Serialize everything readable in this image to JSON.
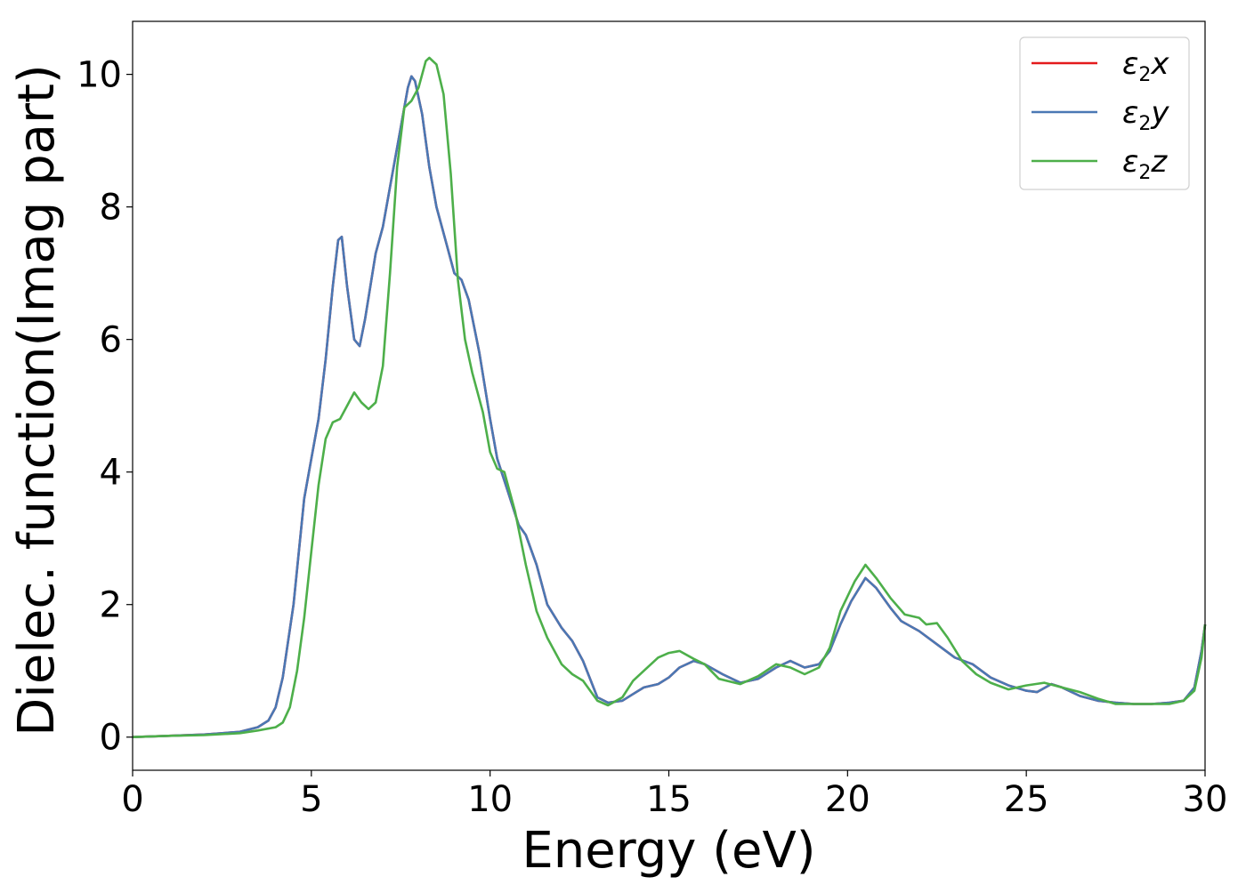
{
  "chart_data": {
    "type": "line",
    "title": "",
    "xlabel": "Energy (eV)",
    "ylabel": "Dielec. function(Imag part)",
    "xlim": [
      0,
      30
    ],
    "ylim": [
      -0.5,
      10.8
    ],
    "xticks": [
      0,
      5,
      10,
      15,
      20,
      25,
      30
    ],
    "yticks": [
      0,
      2,
      4,
      6,
      8,
      10
    ],
    "grid": false,
    "legend_position": "top-right",
    "series": [
      {
        "name": "ε2x",
        "legend_symbol": "ε",
        "legend_sub": "2",
        "legend_var": "x",
        "color": "#e41a1c",
        "points": [
          [
            0,
            0
          ],
          [
            1,
            0.02
          ],
          [
            2,
            0.04
          ],
          [
            3,
            0.08
          ],
          [
            3.5,
            0.15
          ],
          [
            3.8,
            0.25
          ],
          [
            4.0,
            0.45
          ],
          [
            4.2,
            0.9
          ],
          [
            4.5,
            2.0
          ],
          [
            4.8,
            3.6
          ],
          [
            5.0,
            4.2
          ],
          [
            5.2,
            4.8
          ],
          [
            5.4,
            5.7
          ],
          [
            5.6,
            6.8
          ],
          [
            5.75,
            7.5
          ],
          [
            5.85,
            7.55
          ],
          [
            6.0,
            6.8
          ],
          [
            6.2,
            6.0
          ],
          [
            6.35,
            5.9
          ],
          [
            6.5,
            6.3
          ],
          [
            6.8,
            7.3
          ],
          [
            7.0,
            7.7
          ],
          [
            7.2,
            8.3
          ],
          [
            7.5,
            9.2
          ],
          [
            7.7,
            9.8
          ],
          [
            7.8,
            9.97
          ],
          [
            7.9,
            9.9
          ],
          [
            8.1,
            9.4
          ],
          [
            8.3,
            8.6
          ],
          [
            8.5,
            8.0
          ],
          [
            8.8,
            7.4
          ],
          [
            9.0,
            7.0
          ],
          [
            9.2,
            6.9
          ],
          [
            9.4,
            6.6
          ],
          [
            9.7,
            5.8
          ],
          [
            10.0,
            4.8
          ],
          [
            10.2,
            4.2
          ],
          [
            10.5,
            3.7
          ],
          [
            10.8,
            3.2
          ],
          [
            11.0,
            3.05
          ],
          [
            11.3,
            2.6
          ],
          [
            11.6,
            2.0
          ],
          [
            12.0,
            1.65
          ],
          [
            12.3,
            1.45
          ],
          [
            12.6,
            1.15
          ],
          [
            13.0,
            0.6
          ],
          [
            13.3,
            0.52
          ],
          [
            13.7,
            0.55
          ],
          [
            14.0,
            0.65
          ],
          [
            14.3,
            0.75
          ],
          [
            14.7,
            0.8
          ],
          [
            15.0,
            0.9
          ],
          [
            15.3,
            1.05
          ],
          [
            15.7,
            1.15
          ],
          [
            16.0,
            1.1
          ],
          [
            16.5,
            0.95
          ],
          [
            17.0,
            0.82
          ],
          [
            17.5,
            0.88
          ],
          [
            18.0,
            1.05
          ],
          [
            18.4,
            1.15
          ],
          [
            18.8,
            1.05
          ],
          [
            19.2,
            1.1
          ],
          [
            19.5,
            1.3
          ],
          [
            19.8,
            1.7
          ],
          [
            20.1,
            2.05
          ],
          [
            20.5,
            2.4
          ],
          [
            20.8,
            2.25
          ],
          [
            21.2,
            1.95
          ],
          [
            21.5,
            1.75
          ],
          [
            22.0,
            1.6
          ],
          [
            22.5,
            1.4
          ],
          [
            23.0,
            1.2
          ],
          [
            23.5,
            1.1
          ],
          [
            24.0,
            0.9
          ],
          [
            24.5,
            0.78
          ],
          [
            25.0,
            0.7
          ],
          [
            25.3,
            0.68
          ],
          [
            25.7,
            0.8
          ],
          [
            26.0,
            0.75
          ],
          [
            26.5,
            0.62
          ],
          [
            27.0,
            0.55
          ],
          [
            27.5,
            0.52
          ],
          [
            28.0,
            0.5
          ],
          [
            28.5,
            0.5
          ],
          [
            29.0,
            0.52
          ],
          [
            29.4,
            0.55
          ],
          [
            29.7,
            0.75
          ],
          [
            29.9,
            1.3
          ],
          [
            30.0,
            1.7
          ]
        ]
      },
      {
        "name": "ε2y",
        "legend_symbol": "ε",
        "legend_sub": "2",
        "legend_var": "y",
        "color": "#4a78b4",
        "points": [
          [
            0,
            0
          ],
          [
            1,
            0.02
          ],
          [
            2,
            0.04
          ],
          [
            3,
            0.08
          ],
          [
            3.5,
            0.15
          ],
          [
            3.8,
            0.25
          ],
          [
            4.0,
            0.45
          ],
          [
            4.2,
            0.9
          ],
          [
            4.5,
            2.0
          ],
          [
            4.8,
            3.6
          ],
          [
            5.0,
            4.2
          ],
          [
            5.2,
            4.8
          ],
          [
            5.4,
            5.7
          ],
          [
            5.6,
            6.8
          ],
          [
            5.75,
            7.5
          ],
          [
            5.85,
            7.55
          ],
          [
            6.0,
            6.8
          ],
          [
            6.2,
            6.0
          ],
          [
            6.35,
            5.9
          ],
          [
            6.5,
            6.3
          ],
          [
            6.8,
            7.3
          ],
          [
            7.0,
            7.7
          ],
          [
            7.2,
            8.3
          ],
          [
            7.5,
            9.2
          ],
          [
            7.7,
            9.8
          ],
          [
            7.8,
            9.97
          ],
          [
            7.9,
            9.9
          ],
          [
            8.1,
            9.4
          ],
          [
            8.3,
            8.6
          ],
          [
            8.5,
            8.0
          ],
          [
            8.8,
            7.4
          ],
          [
            9.0,
            7.0
          ],
          [
            9.2,
            6.9
          ],
          [
            9.4,
            6.6
          ],
          [
            9.7,
            5.8
          ],
          [
            10.0,
            4.8
          ],
          [
            10.2,
            4.2
          ],
          [
            10.5,
            3.7
          ],
          [
            10.8,
            3.2
          ],
          [
            11.0,
            3.05
          ],
          [
            11.3,
            2.6
          ],
          [
            11.6,
            2.0
          ],
          [
            12.0,
            1.65
          ],
          [
            12.3,
            1.45
          ],
          [
            12.6,
            1.15
          ],
          [
            13.0,
            0.6
          ],
          [
            13.3,
            0.52
          ],
          [
            13.7,
            0.55
          ],
          [
            14.0,
            0.65
          ],
          [
            14.3,
            0.75
          ],
          [
            14.7,
            0.8
          ],
          [
            15.0,
            0.9
          ],
          [
            15.3,
            1.05
          ],
          [
            15.7,
            1.15
          ],
          [
            16.0,
            1.1
          ],
          [
            16.5,
            0.95
          ],
          [
            17.0,
            0.82
          ],
          [
            17.5,
            0.88
          ],
          [
            18.0,
            1.05
          ],
          [
            18.4,
            1.15
          ],
          [
            18.8,
            1.05
          ],
          [
            19.2,
            1.1
          ],
          [
            19.5,
            1.3
          ],
          [
            19.8,
            1.7
          ],
          [
            20.1,
            2.05
          ],
          [
            20.5,
            2.4
          ],
          [
            20.8,
            2.25
          ],
          [
            21.2,
            1.95
          ],
          [
            21.5,
            1.75
          ],
          [
            22.0,
            1.6
          ],
          [
            22.5,
            1.4
          ],
          [
            23.0,
            1.2
          ],
          [
            23.5,
            1.1
          ],
          [
            24.0,
            0.9
          ],
          [
            24.5,
            0.78
          ],
          [
            25.0,
            0.7
          ],
          [
            25.3,
            0.68
          ],
          [
            25.7,
            0.8
          ],
          [
            26.0,
            0.75
          ],
          [
            26.5,
            0.62
          ],
          [
            27.0,
            0.55
          ],
          [
            27.5,
            0.52
          ],
          [
            28.0,
            0.5
          ],
          [
            28.5,
            0.5
          ],
          [
            29.0,
            0.52
          ],
          [
            29.4,
            0.55
          ],
          [
            29.7,
            0.75
          ],
          [
            29.9,
            1.3
          ],
          [
            30.0,
            1.7
          ]
        ]
      },
      {
        "name": "ε2z",
        "legend_symbol": "ε",
        "legend_sub": "2",
        "legend_var": "z",
        "color": "#4daf4a",
        "points": [
          [
            0,
            0
          ],
          [
            1,
            0.02
          ],
          [
            2,
            0.03
          ],
          [
            3,
            0.06
          ],
          [
            3.5,
            0.1
          ],
          [
            4.0,
            0.15
          ],
          [
            4.2,
            0.22
          ],
          [
            4.4,
            0.45
          ],
          [
            4.6,
            1.0
          ],
          [
            4.8,
            1.8
          ],
          [
            5.0,
            2.8
          ],
          [
            5.2,
            3.8
          ],
          [
            5.4,
            4.5
          ],
          [
            5.6,
            4.75
          ],
          [
            5.8,
            4.8
          ],
          [
            6.0,
            5.0
          ],
          [
            6.2,
            5.2
          ],
          [
            6.4,
            5.05
          ],
          [
            6.6,
            4.95
          ],
          [
            6.8,
            5.05
          ],
          [
            7.0,
            5.6
          ],
          [
            7.2,
            7.0
          ],
          [
            7.4,
            8.6
          ],
          [
            7.6,
            9.5
          ],
          [
            7.8,
            9.6
          ],
          [
            8.0,
            9.8
          ],
          [
            8.2,
            10.2
          ],
          [
            8.3,
            10.25
          ],
          [
            8.5,
            10.15
          ],
          [
            8.7,
            9.7
          ],
          [
            8.9,
            8.5
          ],
          [
            9.1,
            6.9
          ],
          [
            9.3,
            6.0
          ],
          [
            9.5,
            5.5
          ],
          [
            9.8,
            4.9
          ],
          [
            10.0,
            4.3
          ],
          [
            10.2,
            4.05
          ],
          [
            10.4,
            4.0
          ],
          [
            10.7,
            3.4
          ],
          [
            11.0,
            2.6
          ],
          [
            11.3,
            1.9
          ],
          [
            11.6,
            1.5
          ],
          [
            12.0,
            1.1
          ],
          [
            12.3,
            0.95
          ],
          [
            12.6,
            0.85
          ],
          [
            13.0,
            0.55
          ],
          [
            13.3,
            0.48
          ],
          [
            13.7,
            0.6
          ],
          [
            14.0,
            0.85
          ],
          [
            14.3,
            1.0
          ],
          [
            14.7,
            1.2
          ],
          [
            15.0,
            1.27
          ],
          [
            15.3,
            1.3
          ],
          [
            15.7,
            1.18
          ],
          [
            16.0,
            1.1
          ],
          [
            16.4,
            0.88
          ],
          [
            17.0,
            0.8
          ],
          [
            17.5,
            0.92
          ],
          [
            18.0,
            1.1
          ],
          [
            18.4,
            1.05
          ],
          [
            18.8,
            0.95
          ],
          [
            19.2,
            1.05
          ],
          [
            19.5,
            1.35
          ],
          [
            19.8,
            1.9
          ],
          [
            20.2,
            2.35
          ],
          [
            20.5,
            2.6
          ],
          [
            20.8,
            2.4
          ],
          [
            21.2,
            2.1
          ],
          [
            21.6,
            1.85
          ],
          [
            22.0,
            1.8
          ],
          [
            22.2,
            1.7
          ],
          [
            22.5,
            1.72
          ],
          [
            22.8,
            1.5
          ],
          [
            23.2,
            1.15
          ],
          [
            23.6,
            0.95
          ],
          [
            24.0,
            0.82
          ],
          [
            24.5,
            0.72
          ],
          [
            25.0,
            0.78
          ],
          [
            25.5,
            0.82
          ],
          [
            26.0,
            0.75
          ],
          [
            26.5,
            0.68
          ],
          [
            27.0,
            0.58
          ],
          [
            27.5,
            0.5
          ],
          [
            28.0,
            0.5
          ],
          [
            28.5,
            0.5
          ],
          [
            29.0,
            0.5
          ],
          [
            29.4,
            0.55
          ],
          [
            29.7,
            0.7
          ],
          [
            29.9,
            1.2
          ],
          [
            30.0,
            1.7
          ]
        ]
      }
    ]
  }
}
